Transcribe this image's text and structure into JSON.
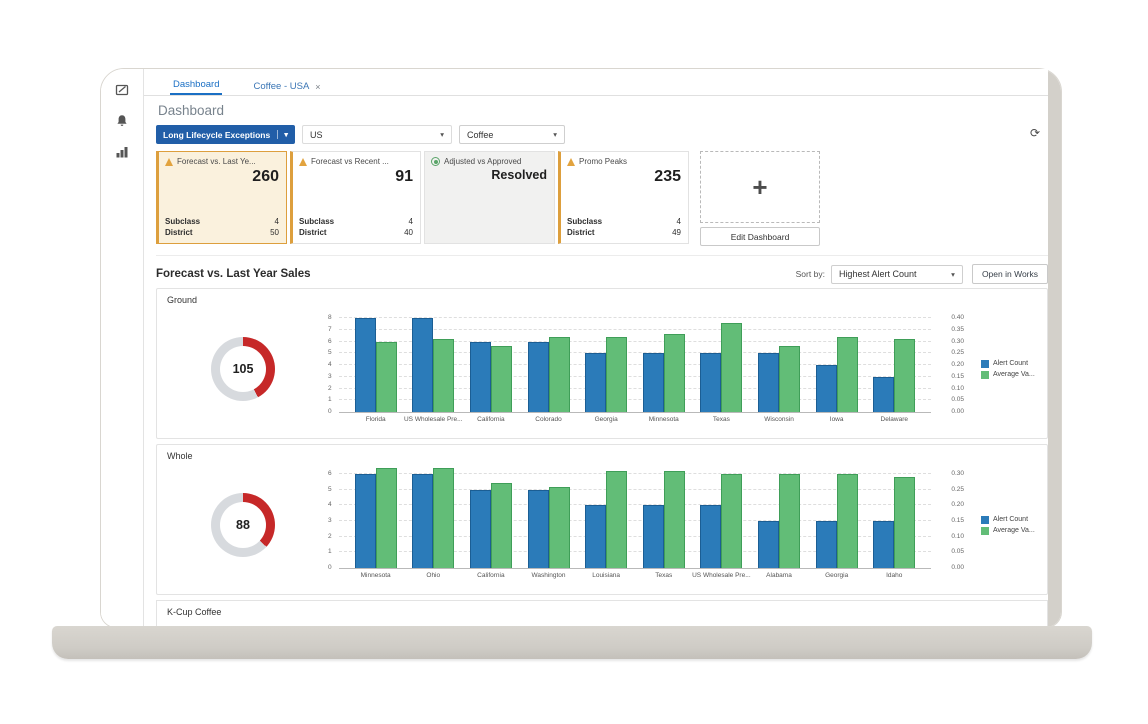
{
  "window": {
    "tabs": [
      {
        "label": "Dashboard"
      },
      {
        "label": "Coffee - USA"
      }
    ],
    "tab_close": "×",
    "page_title": "Dashboard"
  },
  "sidebar": {
    "icons": [
      "compose-icon",
      "notifications-bell-icon",
      "reports-chart-icon"
    ]
  },
  "filters": {
    "exception_type": "Long Lifecycle Exceptions",
    "region": "US",
    "product": "Coffee",
    "caret": "▾",
    "refresh_icon": "⟳"
  },
  "tiles": [
    {
      "status": "warning",
      "selected": true,
      "title": "Forecast vs. Last Ye...",
      "value": "260",
      "rows": [
        {
          "label": "Subclass",
          "value": "4"
        },
        {
          "label": "District",
          "value": "50"
        }
      ]
    },
    {
      "status": "warning",
      "selected": false,
      "title": "Forecast vs Recent ...",
      "value": "91",
      "rows": [
        {
          "label": "Subclass",
          "value": "4"
        },
        {
          "label": "District",
          "value": "40"
        }
      ]
    },
    {
      "status": "resolved",
      "selected": false,
      "title": "Adjusted vs Approved",
      "value": "Resolved",
      "rows": []
    },
    {
      "status": "warning",
      "selected": false,
      "title": "Promo Peaks",
      "value": "235",
      "rows": [
        {
          "label": "Subclass",
          "value": "4"
        },
        {
          "label": "District",
          "value": "49"
        }
      ]
    }
  ],
  "tiles_extra": {
    "add_label": "+",
    "edit_button": "Edit Dashboard"
  },
  "section": {
    "title": "Forecast vs. Last Year Sales",
    "sort_by": "Sort by:",
    "sort_value": "Highest Alert Count",
    "open_button": "Open in Works"
  },
  "chart_data": [
    {
      "type": "bar",
      "title": "Ground",
      "gauge": {
        "value": "105",
        "arc_degrees": 152,
        "arc_color": "#c62828",
        "track_color": "#d7dade"
      },
      "categories": [
        "Florida",
        "US Wholesale Pre...",
        "California",
        "Colorado",
        "Georgia",
        "Minnesota",
        "Texas",
        "Wisconsin",
        "Iowa",
        "Delaware"
      ],
      "series": [
        {
          "name": "Alert Count",
          "color": "#2b7bb9",
          "axis": "left",
          "values": [
            8,
            8,
            6,
            6,
            5,
            5,
            5,
            5,
            4,
            3
          ]
        },
        {
          "name": "Average Va...",
          "color": "#62bd77",
          "axis": "right",
          "values": [
            0.3,
            0.31,
            0.28,
            0.32,
            0.32,
            0.33,
            0.38,
            0.28,
            0.32,
            0.31
          ]
        }
      ],
      "left_axis": {
        "min": 0,
        "max": 8,
        "ticks": [
          8,
          7,
          6,
          5,
          4,
          3,
          2,
          1,
          0
        ]
      },
      "right_axis": {
        "max": 0.4,
        "ticks": [
          "0.40",
          "0.35",
          "0.30",
          "0.25",
          "0.20",
          "0.15",
          "0.10",
          "0.05",
          "0.00"
        ]
      },
      "grid": true,
      "legend_position": "right"
    },
    {
      "type": "bar",
      "title": "Whole",
      "gauge": {
        "value": "88",
        "arc_degrees": 133,
        "arc_color": "#c62828",
        "track_color": "#d7dade"
      },
      "categories": [
        "Minnesota",
        "Ohio",
        "California",
        "Washington",
        "Louisiana",
        "Texas",
        "US Wholesale Pre...",
        "Alabama",
        "Georgia",
        "Idaho"
      ],
      "series": [
        {
          "name": "Alert Count",
          "color": "#2b7bb9",
          "axis": "left",
          "values": [
            6,
            6,
            5,
            5,
            4,
            4,
            4,
            3,
            3,
            3
          ]
        },
        {
          "name": "Average Va...",
          "color": "#62bd77",
          "axis": "right",
          "values": [
            0.32,
            0.32,
            0.27,
            0.26,
            0.31,
            0.31,
            0.3,
            0.3,
            0.3,
            0.29
          ]
        }
      ],
      "left_axis": {
        "min": 0,
        "max": 6,
        "ticks": [
          6,
          5,
          4,
          3,
          2,
          1,
          0
        ]
      },
      "right_axis": {
        "max": 0.3,
        "ticks": [
          "0.30",
          "0.25",
          "0.20",
          "0.15",
          "0.10",
          "0.05",
          "0.00"
        ]
      },
      "grid": true,
      "legend_position": "right"
    }
  ],
  "partial_section": {
    "title": "K-Cup Coffee"
  },
  "colors": {
    "bar_blue": "#2b7bb9",
    "bar_green": "#62bd77",
    "gauge_red": "#c62828",
    "accent_blue": "#1a6fc4",
    "warning_orange": "#e2a33e",
    "primary_button_blue": "#215ea8"
  }
}
